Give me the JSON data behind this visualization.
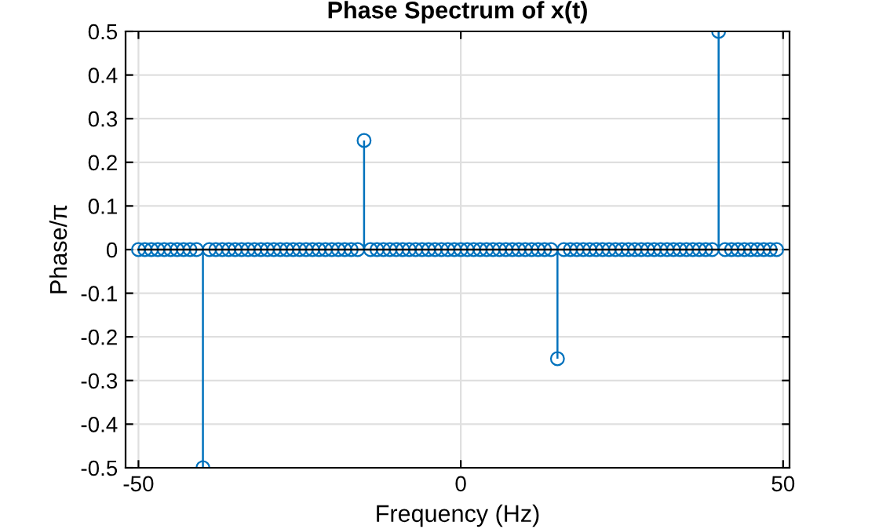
{
  "chart_data": {
    "type": "lollipop",
    "title": "Phase Spectrum of x(t)",
    "xlabel": "Frequency (Hz)",
    "ylabel": "Phase/π",
    "x": [
      -50,
      -49,
      -48,
      -47,
      -46,
      -45,
      -44,
      -43,
      -42,
      -41,
      -40,
      -39,
      -38,
      -37,
      -36,
      -35,
      -34,
      -33,
      -32,
      -31,
      -30,
      -29,
      -28,
      -27,
      -26,
      -25,
      -24,
      -23,
      -22,
      -21,
      -20,
      -19,
      -18,
      -17,
      -16,
      -15,
      -14,
      -13,
      -12,
      -11,
      -10,
      -9,
      -8,
      -7,
      -6,
      -5,
      -4,
      -3,
      -2,
      -1,
      0,
      1,
      2,
      3,
      4,
      5,
      6,
      7,
      8,
      9,
      10,
      11,
      12,
      13,
      14,
      15,
      16,
      17,
      18,
      19,
      20,
      21,
      22,
      23,
      24,
      25,
      26,
      27,
      28,
      29,
      30,
      31,
      32,
      33,
      34,
      35,
      36,
      37,
      38,
      39,
      40,
      41,
      42,
      43,
      44,
      45,
      46,
      47,
      48,
      49
    ],
    "series": [
      {
        "color": "#0072bd",
        "values": [
          0,
          0,
          0,
          0,
          0,
          0,
          0,
          0,
          0,
          0,
          -0.5,
          0,
          0,
          0,
          0,
          0,
          0,
          0,
          0,
          0,
          0,
          0,
          0,
          0,
          0,
          0,
          0,
          0,
          0,
          0,
          0,
          0,
          0,
          0,
          0,
          0.25,
          0,
          0,
          0,
          0,
          0,
          0,
          0,
          0,
          0,
          0,
          0,
          0,
          0,
          0,
          0,
          0,
          0,
          0,
          0,
          0,
          0,
          0,
          0,
          0,
          0,
          0,
          0,
          0,
          0,
          -0.25,
          0,
          0,
          0,
          0,
          0,
          0,
          0,
          0,
          0,
          0,
          0,
          0,
          0,
          0,
          0,
          0,
          0,
          0,
          0,
          0,
          0,
          0,
          0,
          0,
          0.5,
          0,
          0,
          0,
          0,
          0,
          0,
          0,
          0,
          0
        ]
      }
    ],
    "xlim": [
      -52,
      51
    ],
    "xticks": [
      -50,
      0,
      50
    ],
    "ylim": [
      -0.5,
      0.5
    ],
    "yticks": [
      -0.5,
      -0.4,
      -0.3,
      -0.2,
      -0.1,
      0,
      0.1,
      0.2,
      0.3,
      0.4,
      0.5
    ],
    "grid": true,
    "marker": "circle"
  }
}
